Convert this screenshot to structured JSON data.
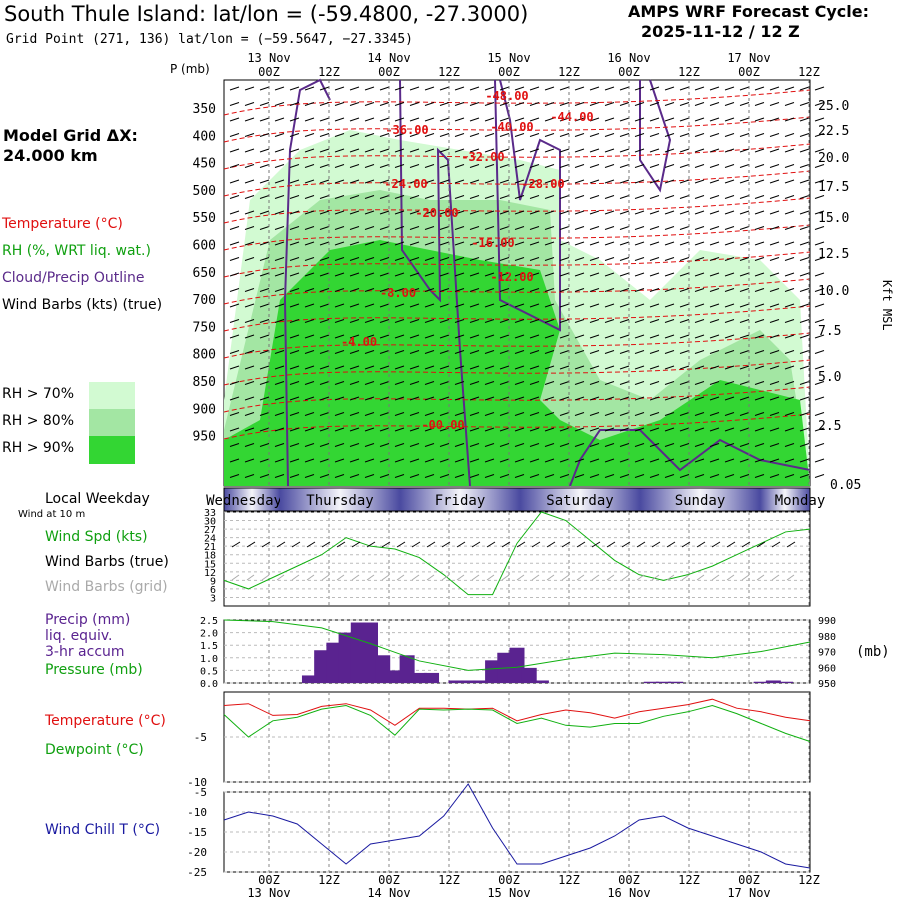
{
  "header": {
    "title": "South Thule Island:  lat/lon = (-59.4800, -27.3000)",
    "subtitle": "Grid Point (271, 136) lat/lon = (−59.5647, −27.3345)",
    "cycle_line1": "AMPS WRF Forecast Cycle:",
    "cycle_line2": "2025-11-12 / 12  Z"
  },
  "legend": {
    "model_grid": "Model Grid ΔX:",
    "model_grid_value": "24.000 km",
    "temperature": "Temperature (°C)",
    "rh": "RH (%, WRT liq. wat.)",
    "cloud": "Cloud/Precip Outline",
    "wind_barbs": "Wind Barbs (kts) (true)",
    "rh70": "RH > 70%",
    "rh80": "RH > 80%",
    "rh90": "RH > 90%",
    "rh_colors": [
      "#d2fad2",
      "#a3e6a3",
      "#33d633"
    ],
    "local_weekday": "Local Weekday",
    "wind_10m": "Wind at 10 m",
    "wind_spd": "Wind Spd (kts)",
    "wind_barbs_true": "Wind Barbs (true)",
    "wind_barbs_grid": "Wind Barbs (grid)",
    "precip1": "Precip (mm)",
    "precip2": "liq. equiv.",
    "precip3": "3-hr accum",
    "pressure": "Pressure (mb)",
    "pressure_unit": "(mb)",
    "temp2": "Temperature (°C)",
    "dewpoint": "Dewpoint (°C)",
    "windchill": "Wind Chill T (°C)",
    "p_unit": "P (mb)",
    "kft": "Kft MSL",
    "height_bottom": "0.05"
  },
  "colors": {
    "temperature": "#e01010",
    "rh_text": "#10a010",
    "cloud": "#5a2a8a",
    "precip": "#5a2390",
    "grid_text": "#aaaaaa",
    "windchill": "#1a1aa0"
  },
  "chart_data": [
    {
      "type": "heatmap",
      "title": "Time-height cross section",
      "x_ticks": [
        "00Z",
        "12Z",
        "00Z",
        "12Z",
        "00Z",
        "12Z",
        "00Z",
        "12Z",
        "00Z",
        "12Z"
      ],
      "x_dates": [
        "13 Nov",
        "14 Nov",
        "15 Nov",
        "16 Nov",
        "17 Nov"
      ],
      "y_pressure_ticks": [
        350,
        400,
        450,
        500,
        550,
        600,
        650,
        700,
        750,
        800,
        850,
        900,
        950
      ],
      "y_height_kft_ticks": [
        "25.0",
        "22.5",
        "20.0",
        "17.5",
        "15.0",
        "12.5",
        "10.0",
        "7.5",
        "5.0",
        "2.5"
      ],
      "temperature_contour_labels": [
        "-48.00",
        "-44.00",
        "-40.00",
        "-36.00",
        "-32.00",
        "-28.00",
        "-24.00",
        "-20.00",
        "-16.00",
        "-12.00",
        "-8.00",
        "-4.00",
        "-00.00"
      ],
      "rh_thresholds": [
        70,
        80,
        90
      ]
    },
    {
      "type": "line",
      "title": "Wind Spd (kts)",
      "y_ticks": [
        3,
        6,
        9,
        12,
        15,
        18,
        21,
        24,
        27,
        30,
        33
      ],
      "ylim": [
        0,
        33
      ],
      "x": [
        0,
        6,
        12,
        18,
        24,
        30,
        36,
        42,
        48,
        54,
        60,
        66,
        72,
        78,
        84,
        90,
        96,
        102,
        108,
        114,
        120,
        126,
        132,
        138,
        144
      ],
      "values": [
        9,
        6,
        10,
        14,
        18,
        24,
        21,
        20,
        17,
        11,
        4,
        4,
        22,
        33,
        30,
        23,
        16,
        11,
        9,
        11,
        14,
        18,
        22,
        26,
        27
      ]
    },
    {
      "type": "bar",
      "title": "Precip (mm) / Pressure (mb)",
      "y_ticks": [
        "0.0",
        "0.5",
        "1.0",
        "1.5",
        "2.0",
        "2.5"
      ],
      "ylim": [
        0,
        2.5
      ],
      "pressure_ticks": [
        950,
        960,
        970,
        980,
        990
      ],
      "pressure_lim": [
        950,
        990
      ],
      "precip_x": [
        21,
        24,
        27,
        30,
        33,
        36,
        39,
        42,
        45,
        48,
        51,
        54,
        57,
        60,
        63,
        66,
        69,
        72,
        75,
        78,
        81,
        84,
        87,
        90,
        93,
        96,
        99,
        102,
        105,
        108,
        111,
        114,
        117,
        120,
        123,
        126,
        129,
        132,
        135,
        138,
        141
      ],
      "precip_values": [
        0.3,
        1.3,
        1.6,
        2.0,
        2.4,
        2.4,
        1.1,
        0.5,
        1.1,
        0.4,
        0.4,
        0.0,
        0.1,
        0.1,
        0.1,
        0.9,
        1.2,
        1.4,
        0.6,
        0.1,
        0.0,
        0.0,
        0.0,
        0.0,
        0.0,
        0.0,
        0.0,
        0.0,
        0.05,
        0.05,
        0.05,
        0.0,
        0.0,
        0.0,
        0.0,
        0.0,
        0.0,
        0.05,
        0.1,
        0.05,
        0.0
      ],
      "pressure_x": [
        0,
        12,
        24,
        36,
        48,
        60,
        72,
        84,
        96,
        108,
        120,
        132,
        144
      ],
      "pressure_values": [
        990,
        989,
        985,
        975,
        964,
        958,
        960,
        965,
        969,
        968,
        966,
        970,
        976
      ]
    },
    {
      "type": "line",
      "title": "Temperature / Dewpoint (°C)",
      "y_ticks": [
        -5,
        -10
      ],
      "ylim": [
        -10,
        0
      ],
      "x": [
        0,
        6,
        12,
        18,
        24,
        30,
        36,
        42,
        48,
        54,
        60,
        66,
        72,
        78,
        84,
        90,
        96,
        102,
        108,
        114,
        120,
        126,
        132,
        138,
        144
      ],
      "series": [
        {
          "name": "Temperature (°C)",
          "values": [
            -1.5,
            -1.3,
            -2.6,
            -2.5,
            -1.6,
            -1.3,
            -2.0,
            -3.7,
            -1.8,
            -1.8,
            -1.9,
            -1.8,
            -3.2,
            -2.5,
            -2.0,
            -2.3,
            -2.9,
            -2.2,
            -1.8,
            -1.4,
            -0.8,
            -1.8,
            -2.2,
            -2.8,
            -3.2
          ]
        },
        {
          "name": "Dewpoint (°C)",
          "values": [
            -2.5,
            -5.0,
            -3.2,
            -2.8,
            -1.9,
            -1.5,
            -2.6,
            -4.8,
            -1.9,
            -2.0,
            -1.9,
            -2.0,
            -3.5,
            -2.9,
            -3.7,
            -3.9,
            -3.5,
            -3.5,
            -2.7,
            -2.2,
            -1.5,
            -2.4,
            -3.5,
            -4.6,
            -5.5
          ]
        }
      ]
    },
    {
      "type": "line",
      "title": "Wind Chill T (°C)",
      "y_ticks": [
        -5,
        -10,
        -15,
        -20,
        -25
      ],
      "ylim": [
        -25,
        -5
      ],
      "x": [
        0,
        6,
        12,
        18,
        24,
        30,
        36,
        42,
        48,
        54,
        60,
        66,
        72,
        78,
        84,
        90,
        96,
        102,
        108,
        114,
        120,
        126,
        132,
        138,
        144
      ],
      "values": [
        -12,
        -10,
        -11,
        -13,
        -18,
        -23,
        -18,
        -17,
        -16,
        -11,
        -3,
        -14,
        -23,
        -23,
        -21,
        -19,
        -16,
        -12,
        -11,
        -14,
        -16,
        -18,
        -20,
        -23,
        -24
      ]
    }
  ],
  "weekdays": [
    {
      "label": "Wednesday"
    },
    {
      "label": "Thursday"
    },
    {
      "label": "Friday"
    },
    {
      "label": "Saturday"
    },
    {
      "label": "Sunday"
    },
    {
      "label": "Monday"
    }
  ]
}
